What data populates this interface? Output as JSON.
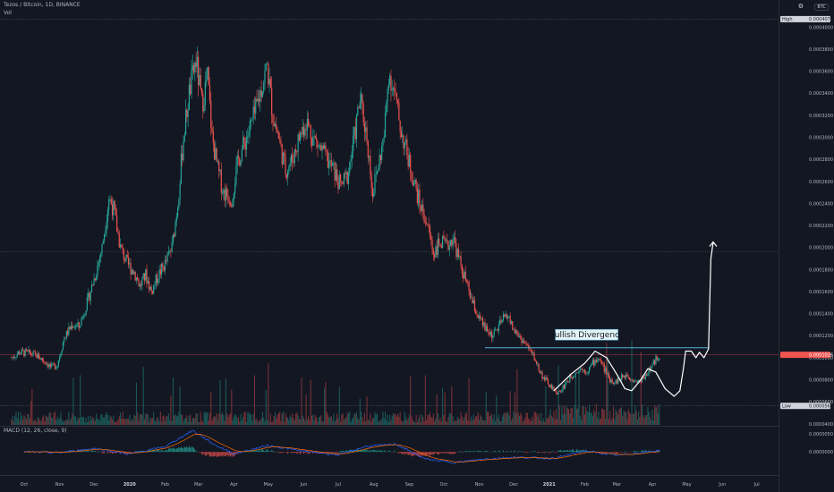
{
  "header": {
    "symbol": "Tezos / Bitcoin, 1D, BINANCE",
    "volume_label": "Vol",
    "currency": "BTC",
    "settings_icon": "gear-icon"
  },
  "macd_legend": "MACD (12, 26, close, 9)",
  "chart_data": {
    "type": "candlestick",
    "symbol": "XTZ/BTC",
    "interval": "1D",
    "exchange": "BINANCE",
    "price_axis": {
      "range": [
        3.9e-05,
        0.00041
      ],
      "tick_labels": [
        "0.0004000",
        "0.0003800",
        "0.0003600",
        "0.0003400",
        "0.0003200",
        "0.0003000",
        "0.0002800",
        "0.0002600",
        "0.0002400",
        "0.0002200",
        "0.0002000",
        "0.0001800",
        "0.0001600",
        "0.0001400",
        "0.0001200",
        "0.0001000",
        "0.0000800",
        "0.0000600",
        "0.0000400"
      ]
    },
    "macd_axis": {
      "range": [
        -6.2e-06,
        6.8e-06
      ],
      "tick_labels": [
        "0.0000050",
        "0.0000000"
      ]
    },
    "x_tick_labels": [
      {
        "label": "Oct",
        "x": "2019-10-01"
      },
      {
        "label": "Nov",
        "x": "2019-11-01"
      },
      {
        "label": "Dec",
        "x": "2019-12-01"
      },
      {
        "label": "2020",
        "x": "2020-01-01"
      },
      {
        "label": "Feb",
        "x": "2020-02-01"
      },
      {
        "label": "Mar",
        "x": "2020-03-01"
      },
      {
        "label": "Apr",
        "x": "2020-04-01"
      },
      {
        "label": "May",
        "x": "2020-05-01"
      },
      {
        "label": "Jun",
        "x": "2020-06-01"
      },
      {
        "label": "Jul",
        "x": "2020-07-01"
      },
      {
        "label": "Aug",
        "x": "2020-08-01"
      },
      {
        "label": "Sep",
        "x": "2020-09-01"
      },
      {
        "label": "Oct",
        "x": "2020-10-01"
      },
      {
        "label": "Nov",
        "x": "2020-11-01"
      },
      {
        "label": "Dec",
        "x": "2020-12-01"
      },
      {
        "label": "2021",
        "x": "2021-01-01"
      },
      {
        "label": "Feb",
        "x": "2021-02-01"
      },
      {
        "label": "Mar",
        "x": "2021-03-01"
      },
      {
        "label": "Apr",
        "x": "2021-04-01"
      },
      {
        "label": "May",
        "x": "2021-05-01"
      },
      {
        "label": "Jun",
        "x": "2021-06-01"
      },
      {
        "label": "Jul",
        "x": "2021-07-01"
      }
    ],
    "price_path": [
      [
        "2019-09-20",
        0.0001
      ],
      [
        "2019-09-27",
        0.000105
      ],
      [
        "2019-10-05",
        0.000104
      ],
      [
        "2019-10-12",
        0.000102
      ],
      [
        "2019-10-20",
        9.6e-05
      ],
      [
        "2019-10-25",
        9.1e-05
      ],
      [
        "2019-10-30",
        9.4e-05
      ],
      [
        "2019-11-05",
        0.000118
      ],
      [
        "2019-11-12",
        0.00013
      ],
      [
        "2019-11-18",
        0.000128
      ],
      [
        "2019-11-25",
        0.00015
      ],
      [
        "2019-12-02",
        0.000175
      ],
      [
        "2019-12-08",
        0.0002
      ],
      [
        "2019-12-14",
        0.000245
      ],
      [
        "2019-12-18",
        0.000235
      ],
      [
        "2019-12-24",
        0.0002
      ],
      [
        "2019-12-30",
        0.000185
      ],
      [
        "2020-01-05",
        0.000178
      ],
      [
        "2020-01-10",
        0.000165
      ],
      [
        "2020-01-15",
        0.000175
      ],
      [
        "2020-01-20",
        0.00016
      ],
      [
        "2020-01-26",
        0.000175
      ],
      [
        "2020-02-01",
        0.000185
      ],
      [
        "2020-02-07",
        0.0002
      ],
      [
        "2020-02-12",
        0.00024
      ],
      [
        "2020-02-17",
        0.0003
      ],
      [
        "2020-02-22",
        0.00034
      ],
      [
        "2020-02-28",
        0.00037
      ],
      [
        "2020-03-04",
        0.00033
      ],
      [
        "2020-03-09",
        0.000355
      ],
      [
        "2020-03-13",
        0.0003
      ],
      [
        "2020-03-18",
        0.00027
      ],
      [
        "2020-03-23",
        0.00025
      ],
      [
        "2020-03-30",
        0.000245
      ],
      [
        "2020-04-05",
        0.00028
      ],
      [
        "2020-04-12",
        0.0003
      ],
      [
        "2020-04-19",
        0.00032
      ],
      [
        "2020-04-25",
        0.000345
      ],
      [
        "2020-04-30",
        0.000365
      ],
      [
        "2020-05-05",
        0.00032
      ],
      [
        "2020-05-10",
        0.0003
      ],
      [
        "2020-05-16",
        0.00027
      ],
      [
        "2020-05-22",
        0.00028
      ],
      [
        "2020-05-28",
        0.0003
      ],
      [
        "2020-06-03",
        0.000315
      ],
      [
        "2020-06-09",
        0.0003
      ],
      [
        "2020-06-15",
        0.00029
      ],
      [
        "2020-06-21",
        0.00028
      ],
      [
        "2020-06-27",
        0.00027
      ],
      [
        "2020-07-03",
        0.000255
      ],
      [
        "2020-07-09",
        0.000265
      ],
      [
        "2020-07-15",
        0.0003
      ],
      [
        "2020-07-20",
        0.000335
      ],
      [
        "2020-07-26",
        0.0003
      ],
      [
        "2020-07-31",
        0.00025
      ],
      [
        "2020-08-05",
        0.000275
      ],
      [
        "2020-08-10",
        0.0003
      ],
      [
        "2020-08-14",
        0.00036
      ],
      [
        "2020-08-19",
        0.00034
      ],
      [
        "2020-08-24",
        0.00031
      ],
      [
        "2020-08-30",
        0.000285
      ],
      [
        "2020-09-05",
        0.00026
      ],
      [
        "2020-09-10",
        0.00024
      ],
      [
        "2020-09-17",
        0.00022
      ],
      [
        "2020-09-22",
        0.000195
      ],
      [
        "2020-09-28",
        0.000205
      ],
      [
        "2020-10-04",
        0.0002
      ],
      [
        "2020-10-09",
        0.00021
      ],
      [
        "2020-10-14",
        0.00019
      ],
      [
        "2020-10-20",
        0.00017
      ],
      [
        "2020-10-26",
        0.00015
      ],
      [
        "2020-11-01",
        0.000135
      ],
      [
        "2020-11-07",
        0.000125
      ],
      [
        "2020-11-13",
        0.00012
      ],
      [
        "2020-11-19",
        0.00013
      ],
      [
        "2020-11-25",
        0.00014
      ],
      [
        "2020-12-01",
        0.000125
      ],
      [
        "2020-12-07",
        0.000118
      ],
      [
        "2020-12-13",
        0.00011
      ],
      [
        "2020-12-19",
        0.0001
      ],
      [
        "2020-12-25",
        8.5e-05
      ],
      [
        "2020-12-30",
        7.8e-05
      ],
      [
        "2021-01-05",
        7e-05
      ],
      [
        "2021-01-10",
        6.8e-05
      ],
      [
        "2021-01-16",
        7.8e-05
      ],
      [
        "2021-01-22",
        8.5e-05
      ],
      [
        "2021-01-28",
        9e-05
      ],
      [
        "2021-02-03",
        8.8e-05
      ],
      [
        "2021-02-08",
        9.5e-05
      ],
      [
        "2021-02-13",
        0.0001
      ],
      [
        "2021-02-18",
        9e-05
      ],
      [
        "2021-02-23",
        8e-05
      ],
      [
        "2021-02-28",
        7.8e-05
      ],
      [
        "2021-03-05",
        8.2e-05
      ],
      [
        "2021-03-10",
        8.5e-05
      ],
      [
        "2021-03-15",
        8e-05
      ],
      [
        "2021-03-20",
        7.8e-05
      ],
      [
        "2021-03-25",
        8.3e-05
      ],
      [
        "2021-03-30",
        9e-05
      ],
      [
        "2021-04-04",
        9.8e-05
      ],
      [
        "2021-04-07",
        0.000103
      ]
    ],
    "high_label": "0.0004073",
    "last_label": "0.0001026",
    "low_label": "0.0000563",
    "series_tags": [
      "High",
      "Low"
    ],
    "horizontal_levels": [
      0.0004073,
      0.000196,
      0.0001026,
      5.63e-05
    ],
    "resistance_line": {
      "from": "2020-11-06",
      "to": "2021-05-20",
      "value": 0.000109
    },
    "annotation": {
      "text": "Bullish Divergence",
      "x": "2021-02-05",
      "y": 0.00012
    },
    "projection_path": [
      [
        "2021-01-05",
        7e-05
      ],
      [
        "2021-01-20",
        8.5e-05
      ],
      [
        "2021-02-01",
        9.5e-05
      ],
      [
        "2021-02-10",
        0.000106
      ],
      [
        "2021-02-20",
        0.0001
      ],
      [
        "2021-03-01",
        8.5e-05
      ],
      [
        "2021-03-08",
        7.2e-05
      ],
      [
        "2021-03-14",
        7e-05
      ],
      [
        "2021-03-22",
        8e-05
      ],
      [
        "2021-03-28",
        9e-05
      ],
      [
        "2021-04-04",
        8.7e-05
      ],
      [
        "2021-04-12",
        7.2e-05
      ],
      [
        "2021-04-20",
        6.5e-05
      ],
      [
        "2021-04-25",
        7e-05
      ],
      [
        "2021-04-28",
        9e-05
      ],
      [
        "2021-04-30",
        0.000106
      ],
      [
        "2021-05-05",
        0.000106
      ],
      [
        "2021-05-09",
        0.0001
      ],
      [
        "2021-05-12",
        0.000105
      ],
      [
        "2021-05-16",
        0.0001
      ],
      [
        "2021-05-20",
        0.000108
      ],
      [
        "2021-05-22",
        0.00019
      ],
      [
        "2021-05-24",
        0.000205
      ]
    ],
    "macd_path": [
      [
        "2019-10-01",
        0.0
      ],
      [
        "2019-11-01",
        -2e-07
      ],
      [
        "2019-12-01",
        1e-06
      ],
      [
        "2020-01-01",
        -6e-07
      ],
      [
        "2020-02-01",
        1.5e-06
      ],
      [
        "2020-02-25",
        6e-06
      ],
      [
        "2020-03-15",
        2e-06
      ],
      [
        "2020-04-01",
        -5e-07
      ],
      [
        "2020-05-01",
        1.8e-06
      ],
      [
        "2020-06-01",
        2e-07
      ],
      [
        "2020-07-01",
        -8e-07
      ],
      [
        "2020-07-25",
        1.5e-06
      ],
      [
        "2020-08-20",
        2.2e-06
      ],
      [
        "2020-09-15",
        -2e-06
      ],
      [
        "2020-10-10",
        -3e-06
      ],
      [
        "2020-11-05",
        -2e-06
      ],
      [
        "2020-12-01",
        -1.5e-06
      ],
      [
        "2021-01-05",
        -1.8e-06
      ],
      [
        "2021-02-01",
        3e-07
      ],
      [
        "2021-03-01",
        -1e-06
      ],
      [
        "2021-04-07",
        4e-07
      ]
    ]
  }
}
